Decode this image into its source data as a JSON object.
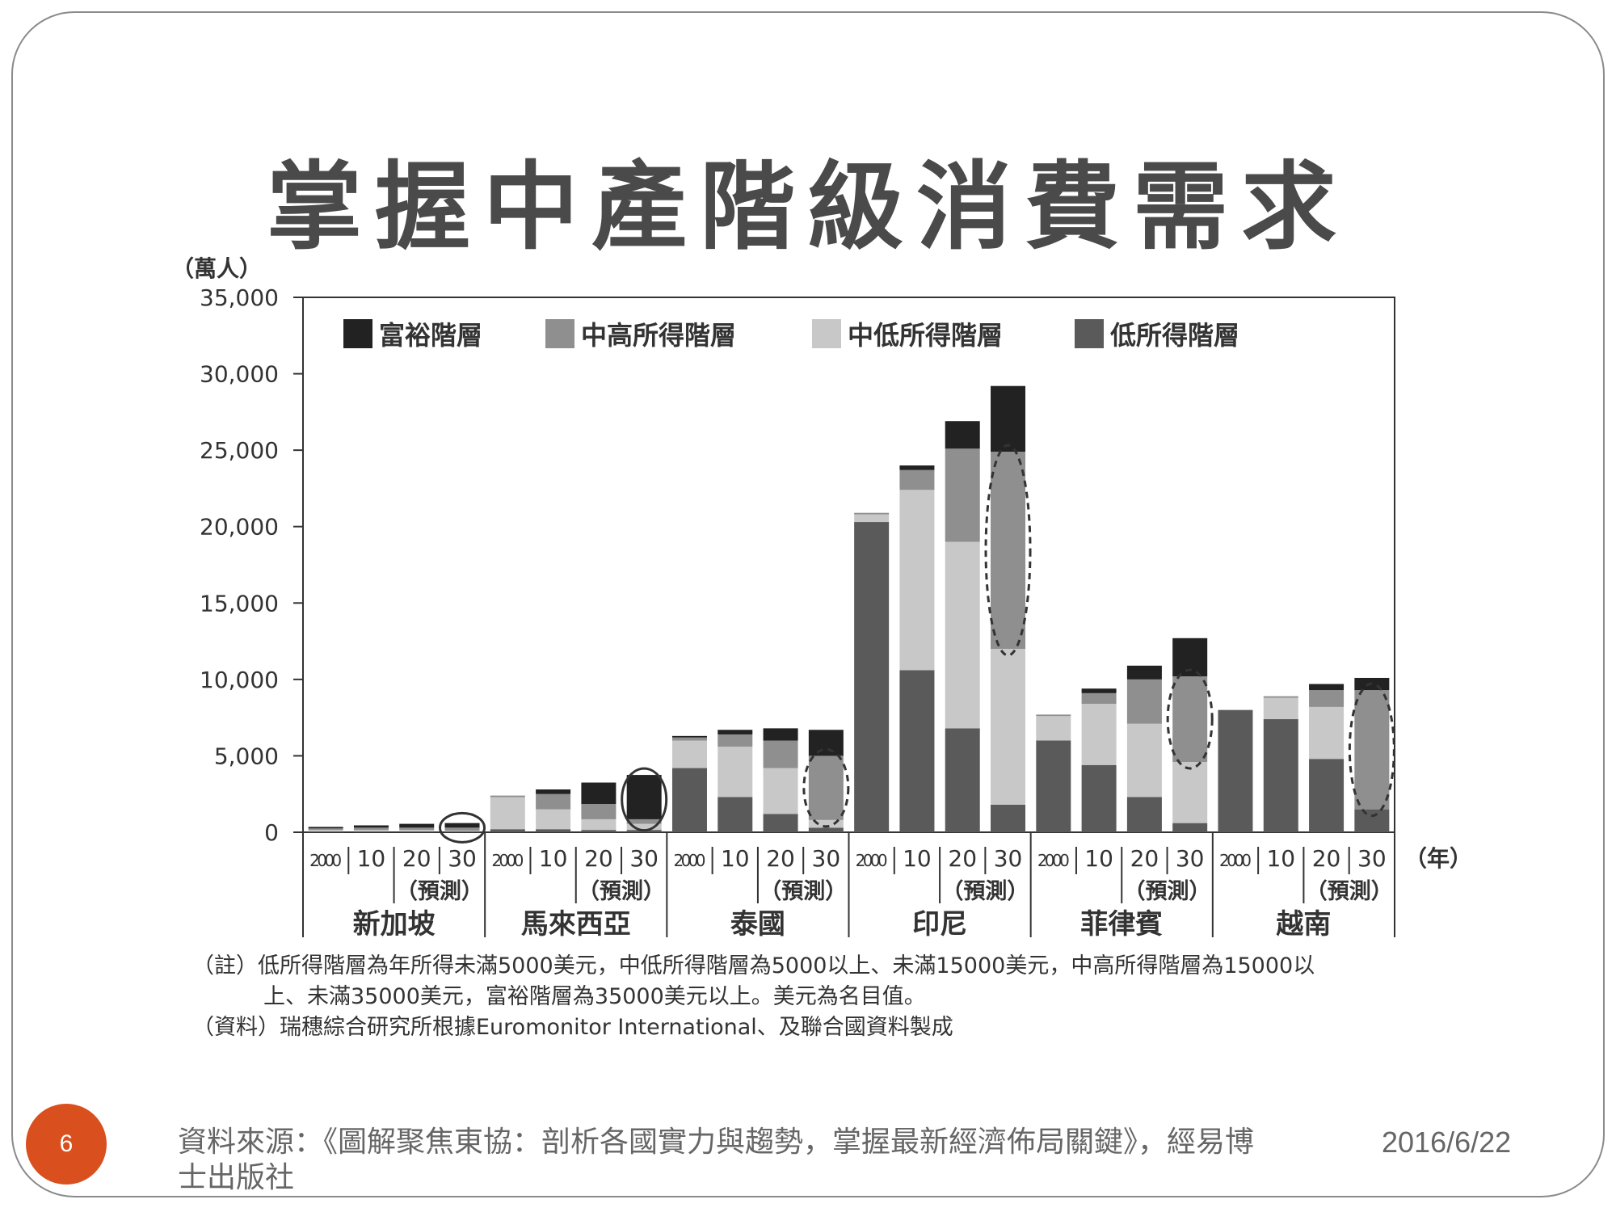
{
  "slide": {
    "title": "掌握中產階級消費需求",
    "page_number": "6",
    "source_line1": "資料來源：《圖解聚焦東協：剖析各國實力與趨勢，掌握最新經濟佈局關鍵》，經易博",
    "source_line2": "士出版社",
    "date": "2016/6/22"
  },
  "notes": {
    "note_line1": "（註）低所得階層為年所得未滿5000美元，中低所得階層為5000以上、未滿15000美元，中高所得階層為15000以",
    "note_line2": "上、未滿35000美元，富裕階層為35000美元以上。美元為名目值。",
    "source_note": "（資料）瑞穗綜合研究所根據Euromonitor International、及聯合國資料製成"
  },
  "chart_data": {
    "type": "bar",
    "stacked": true,
    "ylabel": "（萬人）",
    "xlabel": "（年）",
    "ylim": [
      0,
      35000
    ],
    "yticks": [
      0,
      5000,
      10000,
      15000,
      20000,
      25000,
      30000,
      35000
    ],
    "ytick_labels": [
      "0",
      "5,000",
      "10,000",
      "15,000",
      "20,000",
      "25,000",
      "30,000",
      "35,000"
    ],
    "legend_position": "top-left inside",
    "grid": false,
    "forecast_label": "（預測）",
    "groups": [
      {
        "name": "新加坡",
        "year_labels": [
          "2000",
          "10",
          "20",
          "30"
        ]
      },
      {
        "name": "馬來西亞",
        "year_labels": [
          "2000",
          "10",
          "20",
          "30"
        ]
      },
      {
        "name": "泰國",
        "year_labels": [
          "2000",
          "10",
          "20",
          "30"
        ]
      },
      {
        "name": "印尼",
        "year_labels": [
          "2000",
          "10",
          "20",
          "30"
        ]
      },
      {
        "name": "菲律賓",
        "year_labels": [
          "2000",
          "10",
          "20",
          "30"
        ]
      },
      {
        "name": "越南",
        "year_labels": [
          "2000",
          "10",
          "20",
          "30"
        ]
      }
    ],
    "series": [
      {
        "name": "低所得階層",
        "color": "#5a5a5a",
        "values": [
          50,
          50,
          50,
          50,
          200,
          200,
          150,
          150,
          4200,
          2300,
          1200,
          300,
          20300,
          10600,
          6800,
          1800,
          6000,
          4400,
          2300,
          600,
          8000,
          7400,
          4800,
          1500
        ]
      },
      {
        "name": "中低所得階層",
        "color": "#c8c8c8",
        "values": [
          100,
          100,
          100,
          50,
          2100,
          1300,
          700,
          400,
          1800,
          3300,
          3000,
          500,
          500,
          11800,
          12200,
          10200,
          1600,
          4000,
          4800,
          4000,
          0,
          1400,
          3400,
          0
        ]
      },
      {
        "name": "中高所得階層",
        "color": "#8f8f8f",
        "values": [
          100,
          150,
          150,
          200,
          100,
          1000,
          1000,
          300,
          200,
          800,
          1800,
          4200,
          100,
          1300,
          6100,
          12900,
          100,
          700,
          2900,
          5600,
          0,
          100,
          1100,
          7800
        ]
      },
      {
        "name": "富裕階層",
        "color": "#222222",
        "values": [
          100,
          150,
          250,
          300,
          0,
          300,
          1400,
          2900,
          100,
          300,
          800,
          1700,
          0,
          300,
          1800,
          4300,
          0,
          300,
          900,
          2500,
          0,
          0,
          400,
          800
        ]
      }
    ],
    "highlights": [
      {
        "group": "新加坡",
        "year": "30",
        "style": "solid"
      },
      {
        "group": "馬來西亞",
        "year": "30",
        "style": "solid"
      },
      {
        "group": "泰國",
        "year": "30",
        "style": "dashed"
      },
      {
        "group": "印尼",
        "year": "30",
        "style": "dashed"
      },
      {
        "group": "菲律賓",
        "year": "30",
        "style": "dashed"
      },
      {
        "group": "越南",
        "year": "30",
        "style": "dashed"
      }
    ]
  }
}
